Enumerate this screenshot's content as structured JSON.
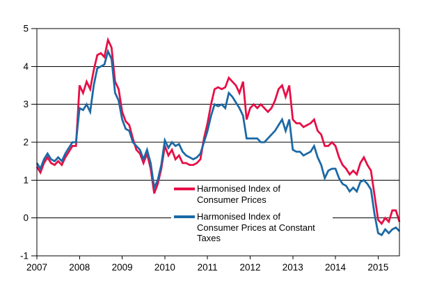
{
  "chart_data": {
    "type": "line",
    "title": "",
    "xlabel": "",
    "ylabel": "",
    "x_start": "2007-01",
    "frequency": "monthly",
    "x_end": "2015-07",
    "ylim": [
      -1,
      5
    ],
    "y_ticks": [
      -1,
      0,
      1,
      2,
      3,
      4,
      5
    ],
    "x_ticks": [
      2007,
      2008,
      2009,
      2010,
      2011,
      2012,
      2013,
      2014,
      2015
    ],
    "grid": "horizontal",
    "legend_position": "inside-lower-middle",
    "axis_color": "#000000",
    "series": [
      {
        "name": "Harmonised Index of Consumer Prices",
        "color": "#e60f46",
        "values": [
          1.35,
          1.2,
          1.45,
          1.6,
          1.45,
          1.4,
          1.5,
          1.4,
          1.6,
          1.75,
          1.9,
          1.9,
          3.5,
          3.3,
          3.6,
          3.4,
          3.9,
          4.3,
          4.35,
          4.25,
          4.7,
          4.5,
          3.6,
          3.4,
          2.8,
          2.55,
          2.45,
          2.1,
          1.8,
          1.7,
          1.45,
          1.7,
          1.3,
          0.65,
          0.9,
          1.3,
          1.9,
          1.65,
          1.8,
          1.55,
          1.65,
          1.45,
          1.45,
          1.4,
          1.4,
          1.45,
          1.55,
          2.1,
          2.5,
          3.0,
          3.4,
          3.45,
          3.4,
          3.45,
          3.7,
          3.6,
          3.5,
          3.3,
          3.6,
          2.6,
          2.9,
          3.0,
          2.9,
          3.0,
          2.9,
          2.8,
          2.9,
          3.1,
          3.4,
          3.5,
          3.2,
          3.5,
          2.6,
          2.5,
          2.5,
          2.4,
          2.45,
          2.5,
          2.6,
          2.3,
          2.2,
          1.9,
          1.9,
          2.0,
          1.9,
          1.6,
          1.4,
          1.3,
          1.15,
          1.25,
          1.15,
          1.45,
          1.6,
          1.4,
          1.25,
          0.6,
          -0.05,
          -0.15,
          0.0,
          -0.1,
          0.2,
          0.2,
          -0.1
        ]
      },
      {
        "name": "Harmonised Index of Consumer Prices at Constant Taxes",
        "color": "#1c69a5",
        "values": [
          1.45,
          1.3,
          1.55,
          1.7,
          1.55,
          1.5,
          1.6,
          1.5,
          1.7,
          1.85,
          2.0,
          2.0,
          2.9,
          2.85,
          3.0,
          2.8,
          3.5,
          3.95,
          4.0,
          4.05,
          4.4,
          4.2,
          3.3,
          3.1,
          2.6,
          2.35,
          2.3,
          2.0,
          1.9,
          1.8,
          1.55,
          1.8,
          1.45,
          0.8,
          1.0,
          1.4,
          2.05,
          1.85,
          2.0,
          1.9,
          1.95,
          1.75,
          1.65,
          1.6,
          1.55,
          1.6,
          1.7,
          2.0,
          2.3,
          2.7,
          3.0,
          2.95,
          3.0,
          2.9,
          3.3,
          3.2,
          3.05,
          2.9,
          2.7,
          2.1,
          2.1,
          2.1,
          2.1,
          2.0,
          2.0,
          2.1,
          2.2,
          2.3,
          2.45,
          2.6,
          2.3,
          2.6,
          1.8,
          1.75,
          1.75,
          1.65,
          1.7,
          1.75,
          1.9,
          1.6,
          1.4,
          1.05,
          1.25,
          1.3,
          1.3,
          1.05,
          0.9,
          0.85,
          0.7,
          0.8,
          0.7,
          0.95,
          1.0,
          0.9,
          0.75,
          0.1,
          -0.4,
          -0.45,
          -0.3,
          -0.4,
          -0.3,
          -0.25,
          -0.35
        ]
      }
    ]
  },
  "legend": {
    "entries": [
      {
        "color": "#e60f46",
        "line1": "Harmonised Index of",
        "line2": "Consumer Prices",
        "line3": ""
      },
      {
        "color": "#1c69a5",
        "line1": "Harmonised Index of",
        "line2": "Consumer Prices at Constant",
        "line3": "Taxes"
      }
    ]
  }
}
